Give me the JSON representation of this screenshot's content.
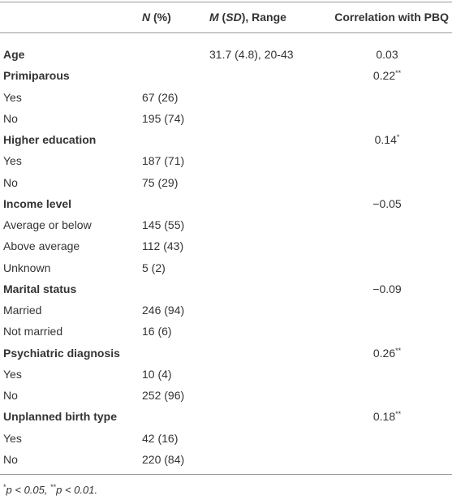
{
  "header": [
    {
      "italic": "N",
      "rest": " (%)"
    },
    {
      "italic": "M",
      "mid": " (",
      "italic2": "SD",
      "rest": "), Range"
    },
    {
      "rest": "Correlation with PBQ"
    }
  ],
  "rows": [
    {
      "label": "Age",
      "bold": true,
      "stats": "31.7 (4.8), 20-43",
      "corr": "0.03"
    },
    {
      "label": "Primiparous",
      "bold": true,
      "corr": "0.22",
      "sig": "**"
    },
    {
      "label": "Yes",
      "n": "67 (26)"
    },
    {
      "label": "No",
      "n": "195 (74)"
    },
    {
      "label": "Higher education",
      "bold": true,
      "corr": "0.14",
      "sig": "*"
    },
    {
      "label": "Yes",
      "n": "187 (71)"
    },
    {
      "label": "No",
      "n": "75 (29)"
    },
    {
      "label": "Income level",
      "bold": true,
      "corr": "−0.05"
    },
    {
      "label": "Average or below",
      "n": "145 (55)"
    },
    {
      "label": "Above average",
      "n": "112 (43)"
    },
    {
      "label": "Unknown",
      "n": "5 (2)"
    },
    {
      "label": "Marital status",
      "bold": true,
      "corr": "−0.09"
    },
    {
      "label": "Married",
      "n": "246 (94)"
    },
    {
      "label": "Not married",
      "n": "16 (6)"
    },
    {
      "label": "Psychiatric diagnosis",
      "bold": true,
      "corr": "0.26",
      "sig": "**"
    },
    {
      "label": "Yes",
      "n": "10 (4)"
    },
    {
      "label": "No",
      "n": "252 (96)"
    },
    {
      "label": "Unplanned birth type",
      "bold": true,
      "corr": "0.18",
      "sig": "**"
    },
    {
      "label": "Yes",
      "n": "42 (16)"
    },
    {
      "label": "No",
      "n": "220 (84)"
    }
  ],
  "footnote": [
    {
      "sup": "*",
      "italic": "p",
      "rest": " < 0.05, "
    },
    {
      "sup": "**",
      "italic": "p",
      "rest": " < 0.01."
    }
  ]
}
